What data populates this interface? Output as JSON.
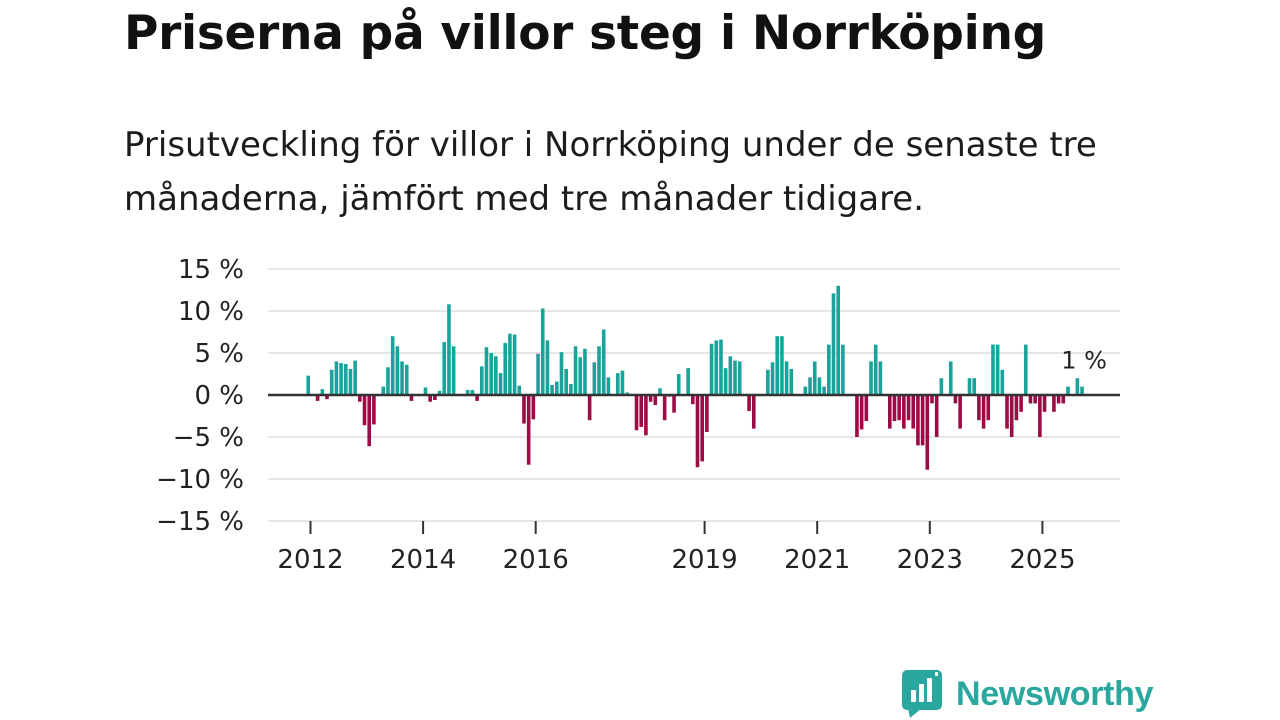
{
  "title": "Priserna på villor steg i Norrköping",
  "subtitle": "Prisutveckling för villor i Norrköping under de senaste tre månaderna, jämfört med tre månader tidigare.",
  "brand": {
    "name": "Newsworthy",
    "icon": "newsworthy-logo-icon"
  },
  "colors": {
    "positive": "#1aa39a",
    "negative": "#9b0b45",
    "grid": "#dddddd",
    "baseline": "#333333"
  },
  "chart_data": {
    "type": "bar",
    "title": "",
    "xlabel": "",
    "ylabel": "",
    "ylim": [
      -15,
      15
    ],
    "yticks": [
      -15,
      -10,
      -5,
      0,
      5,
      10,
      15
    ],
    "ytick_labels": [
      "−15 %",
      "−10 %",
      "−5 %",
      "0 %",
      "5 %",
      "10 %",
      "15 %"
    ],
    "xticks": [
      2012,
      2014,
      2016,
      2019,
      2021,
      2023,
      2025
    ],
    "xtick_labels": [
      "2012",
      "2014",
      "2016",
      "2019",
      "2021",
      "2023",
      "2025"
    ],
    "x_start": 2011.96,
    "x_step": 0.0833,
    "value_unit": "%",
    "values": [
      2.3,
      null,
      -0.7,
      0.7,
      -0.5,
      3.0,
      4.0,
      3.8,
      3.7,
      3.1,
      4.1,
      -0.8,
      -3.6,
      -6.1,
      -3.5,
      null,
      1.0,
      3.3,
      7.0,
      5.8,
      4.0,
      3.6,
      -0.7,
      null,
      null,
      0.9,
      -0.8,
      -0.6,
      0.5,
      6.3,
      10.8,
      5.8,
      null,
      null,
      0.6,
      0.6,
      -0.7,
      3.4,
      5.7,
      5.0,
      4.6,
      2.6,
      6.2,
      7.3,
      7.2,
      1.1,
      -3.4,
      -8.3,
      -2.9,
      4.9,
      10.3,
      6.5,
      1.2,
      1.6,
      5.1,
      3.1,
      1.3,
      5.8,
      4.5,
      5.5,
      -3.0,
      3.9,
      5.8,
      7.8,
      2.1,
      null,
      2.6,
      2.9,
      0.3,
      null,
      -4.2,
      -3.8,
      -4.8,
      -0.8,
      -1.2,
      0.8,
      -3.0,
      -0.2,
      -2.1,
      2.5,
      null,
      3.2,
      -1.1,
      -8.6,
      -7.9,
      -4.4,
      6.1,
      6.5,
      6.6,
      3.2,
      4.6,
      4.1,
      4.0,
      null,
      -1.9,
      -4.0,
      null,
      null,
      3.0,
      3.9,
      7.0,
      7.0,
      4.0,
      3.1,
      null,
      null,
      1.0,
      2.1,
      4.0,
      2.1,
      1.0,
      6.0,
      12.1,
      13.0,
      6.0,
      null,
      null,
      -5.0,
      -4.1,
      -3.1,
      4.0,
      6.0,
      4.0,
      null,
      -4.0,
      -3.1,
      -3.0,
      -4.0,
      -3.0,
      -4.0,
      -6.0,
      -6.0,
      -8.9,
      -1.0,
      -5.0,
      2.0,
      null,
      4.0,
      -1.0,
      -4.0,
      null,
      2.0,
      2.0,
      -3.0,
      -4.0,
      -3.0,
      6.0,
      6.0,
      3.0,
      -4.0,
      -5.0,
      -3.0,
      -2.0,
      6.0,
      -1.0,
      -1.0,
      -5.0,
      -2.0,
      null,
      -2.0,
      -1.0,
      -1.0,
      1.0,
      null,
      2.0,
      1.0
    ],
    "annotation": {
      "text": "1 %",
      "value": 1
    }
  }
}
